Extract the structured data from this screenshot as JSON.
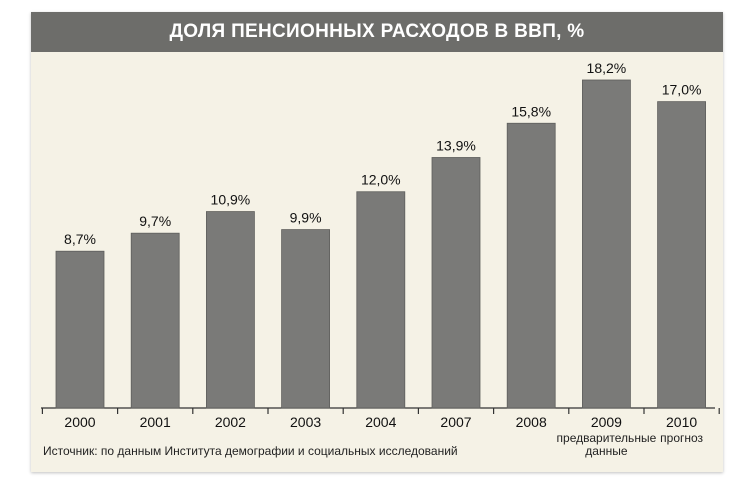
{
  "chart_data": {
    "type": "bar",
    "title": "ДОЛЯ ПЕНСИОННЫХ РАСХОДОВ  В ВВП, %",
    "categories": [
      "2000",
      "2001",
      "2002",
      "2003",
      "2004",
      "2007",
      "2008",
      "2009",
      "2010"
    ],
    "values": [
      8.7,
      9.7,
      10.9,
      9.9,
      12.0,
      13.9,
      15.8,
      18.2,
      17.0
    ],
    "value_labels": [
      "8,7%",
      "9,7%",
      "10,9%",
      "9,9%",
      "12,0%",
      "13,9%",
      "15,8%",
      "18,2%",
      "17,0%"
    ],
    "category_notes": [
      "",
      "",
      "",
      "",
      "",
      "",
      "",
      "предварительные данные",
      "прогноз"
    ],
    "ylim": [
      0,
      18.2
    ],
    "grid": false,
    "bar_color": "#7a7a78",
    "source": "Источник: по данным Института демографии и социальных исследований"
  }
}
